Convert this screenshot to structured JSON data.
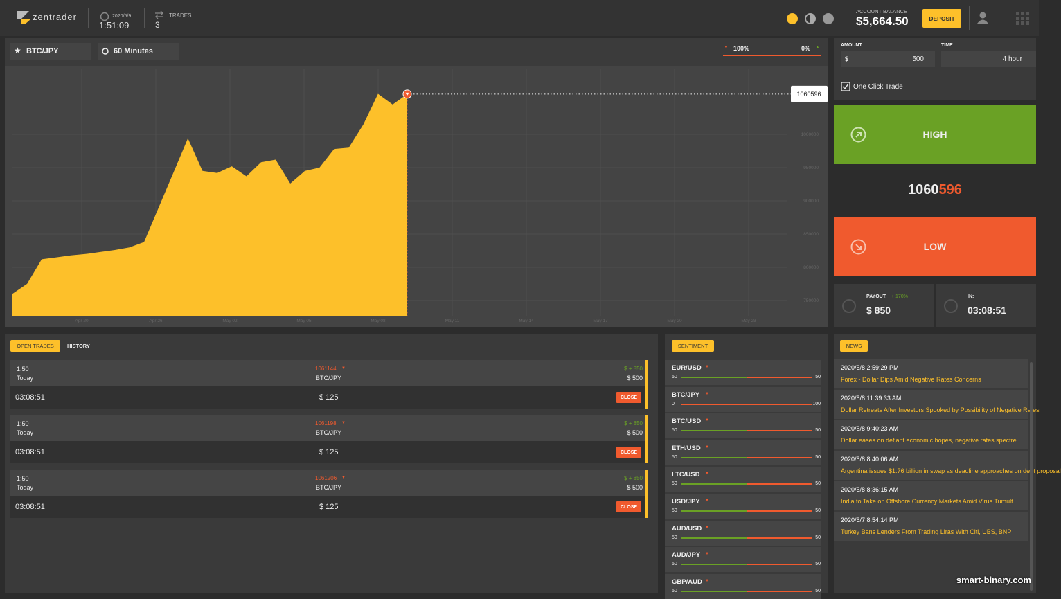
{
  "header": {
    "logo": "zentrader",
    "date": "2020/5/9",
    "time": "1:51:09",
    "trades_label": "TRADES",
    "trades_count": "3",
    "balance_label": "ACCOUNT BALANCE",
    "balance": "$5,664.50",
    "deposit": "DEPOSIT"
  },
  "chart_panel": {
    "asset": "BTC/JPY",
    "period": "60 Minutes",
    "up_pct": "100%",
    "down_pct": "0%",
    "price_tag": "1060596",
    "chart": {
      "type": "area",
      "color": "#fdc02a",
      "x_labels": [
        "Apr 20",
        "Apr 26",
        "May 02",
        "May 05",
        "May 08",
        "May 11",
        "May 14",
        "May 17",
        "May 20",
        "May 23"
      ],
      "values": [
        760000,
        775000,
        812000,
        815000,
        818000,
        820000,
        823000,
        826000,
        830000,
        838000,
        890000,
        942000,
        994000,
        945000,
        942000,
        952000,
        937000,
        958000,
        962000,
        926000,
        945000,
        950000,
        978000,
        980000,
        1015000,
        1061000,
        1045000,
        1060596
      ],
      "ylim": [
        727000,
        1098000
      ],
      "yticks": [
        750000,
        800000,
        850000,
        900000,
        950000,
        1000000
      ],
      "grid": true
    }
  },
  "trade_panel": {
    "amount_label": "AMOUNT",
    "currency": "$",
    "amount": "500",
    "time_label": "TIME",
    "time": "4 hour",
    "one_click": "One Click Trade",
    "high": "HIGH",
    "price_main": "1060",
    "price_tail": "596",
    "low": "LOW",
    "payout_label": "PAYOUT:",
    "payout_pct": "+ 170%",
    "payout": "$ 850",
    "in_label": "IN:",
    "in_time": "03:08:51"
  },
  "open_trades": {
    "tabs": [
      "OPEN TRADES",
      "HISTORY"
    ],
    "trades": [
      {
        "time": "1:50",
        "day": "Today",
        "price": "1061144",
        "asset": "BTC/JPY",
        "profit": "$ + 850",
        "amount": "$ 500",
        "countdown": "03:08:51",
        "invest": "$ 125",
        "action": "CLOSE"
      },
      {
        "time": "1:50",
        "day": "Today",
        "price": "1061198",
        "asset": "BTC/JPY",
        "profit": "$ + 850",
        "amount": "$ 500",
        "countdown": "03:08:51",
        "invest": "$ 125",
        "action": "CLOSE"
      },
      {
        "time": "1:50",
        "day": "Today",
        "price": "1061206",
        "asset": "BTC/JPY",
        "profit": "$ + 850",
        "amount": "$ 500",
        "countdown": "03:08:51",
        "invest": "$ 125",
        "action": "CLOSE"
      }
    ]
  },
  "sentiment": {
    "title": "SENTIMENT",
    "pairs": [
      {
        "name": "EUR/USD",
        "low": 50,
        "high": 50
      },
      {
        "name": "BTC/JPY",
        "low": 0,
        "high": 100
      },
      {
        "name": "BTC/USD",
        "low": 50,
        "high": 50
      },
      {
        "name": "ETH/USD",
        "low": 50,
        "high": 50
      },
      {
        "name": "LTC/USD",
        "low": 50,
        "high": 50
      },
      {
        "name": "USD/JPY",
        "low": 50,
        "high": 50
      },
      {
        "name": "AUD/USD",
        "low": 50,
        "high": 50
      },
      {
        "name": "AUD/JPY",
        "low": 50,
        "high": 50
      },
      {
        "name": "GBP/AUD",
        "low": 50,
        "high": 50
      }
    ]
  },
  "news": {
    "title": "NEWS",
    "items": [
      {
        "date": "2020/5/8 2:59:29 PM",
        "headline": "Forex - Dollar Dips Amid Negative Rates Concerns"
      },
      {
        "date": "2020/5/8 11:39:33 AM",
        "headline": "Dollar Retreats After Investors Spooked by Possibility of Negative Rates"
      },
      {
        "date": "2020/5/8 9:40:23 AM",
        "headline": "Dollar eases on defiant economic hopes, negative rates spectre"
      },
      {
        "date": "2020/5/8 8:40:06 AM",
        "headline": "Argentina issues $1.76 billion in swap as deadline approaches on debt proposal"
      },
      {
        "date": "2020/5/8 8:36:15 AM",
        "headline": "India to Take on Offshore Currency Markets Amid Virus Tumult"
      },
      {
        "date": "2020/5/7 8:54:14 PM",
        "headline": "Turkey Bans Lenders From Trading Liras With Citi, UBS, BNP"
      }
    ]
  },
  "watermark": "smart-binary.com"
}
